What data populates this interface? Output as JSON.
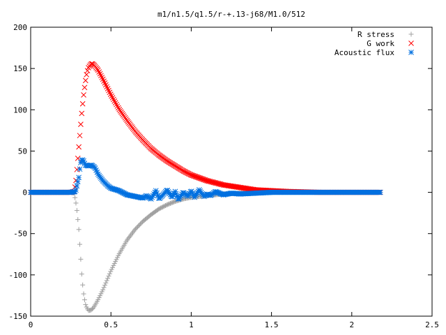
{
  "chart_data": {
    "type": "scatter",
    "title": "m1/n1.5/q1.5/r-+.13-j68/M1.0/512",
    "xlabel": "",
    "ylabel": "",
    "xlim": [
      0,
      2.5
    ],
    "ylim": [
      -150,
      200
    ],
    "xticks": [
      0,
      0.5,
      1,
      1.5,
      2,
      2.5
    ],
    "xtick_labels": [
      "0",
      "0.5",
      "1",
      "1.5",
      "2",
      "2.5"
    ],
    "yticks": [
      -150,
      -100,
      -50,
      0,
      50,
      100,
      150,
      200
    ],
    "ytick_labels": [
      "-150",
      "-100",
      "-50",
      "0",
      "50",
      "100",
      "150",
      "200"
    ],
    "grid": false,
    "legend_position": "top-right",
    "series": [
      {
        "name": "R stress",
        "marker": "plus",
        "color": "#a0a0a0",
        "x": [
          0,
          0.05,
          0.1,
          0.15,
          0.2,
          0.25,
          0.27,
          0.28,
          0.29,
          0.3,
          0.31,
          0.32,
          0.33,
          0.34,
          0.35,
          0.36,
          0.37,
          0.38,
          0.39,
          0.4,
          0.42,
          0.45,
          0.5,
          0.55,
          0.6,
          0.65,
          0.7,
          0.75,
          0.8,
          0.85,
          0.9,
          0.95,
          1,
          1.1,
          1.2,
          1.3,
          1.4,
          1.5,
          1.6,
          1.8,
          2,
          2.18
        ],
        "y": [
          0,
          0,
          0,
          0,
          0,
          0,
          -1,
          -10,
          -25,
          -45,
          -75,
          -105,
          -123,
          -135,
          -140,
          -143,
          -143,
          -142,
          -140,
          -137,
          -130,
          -118,
          -95,
          -75,
          -58,
          -45,
          -35,
          -27,
          -20,
          -15,
          -11,
          -8,
          -6,
          -4,
          -2,
          -1,
          0,
          0,
          0,
          0,
          0,
          0
        ]
      },
      {
        "name": "G work",
        "marker": "cross",
        "color": "#ff0000",
        "x": [
          0,
          0.05,
          0.1,
          0.15,
          0.2,
          0.25,
          0.27,
          0.28,
          0.29,
          0.3,
          0.31,
          0.32,
          0.33,
          0.34,
          0.35,
          0.36,
          0.37,
          0.38,
          0.39,
          0.4,
          0.42,
          0.45,
          0.5,
          0.55,
          0.6,
          0.65,
          0.7,
          0.75,
          0.8,
          0.85,
          0.9,
          0.95,
          1,
          1.1,
          1.2,
          1.3,
          1.4,
          1.5,
          1.6,
          1.8,
          2,
          2.18
        ],
        "y": [
          0,
          0,
          0,
          0,
          0,
          0,
          1,
          10,
          32,
          55,
          78,
          100,
          118,
          133,
          145,
          151,
          154,
          156,
          155,
          153,
          148,
          137,
          118,
          101,
          87,
          74,
          63,
          53,
          45,
          38,
          32,
          26,
          21,
          14,
          9,
          6,
          3,
          2,
          1,
          0,
          0,
          0
        ]
      },
      {
        "name": "Acoustic flux",
        "marker": "star",
        "color": "#0070e0",
        "x": [
          0,
          0.05,
          0.1,
          0.15,
          0.2,
          0.25,
          0.28,
          0.3,
          0.31,
          0.32,
          0.33,
          0.34,
          0.36,
          0.38,
          0.4,
          0.42,
          0.45,
          0.48,
          0.5,
          0.55,
          0.6,
          0.65,
          0.7,
          0.72,
          0.75,
          0.78,
          0.8,
          0.82,
          0.85,
          0.88,
          0.9,
          0.92,
          0.95,
          0.98,
          1,
          1.02,
          1.05,
          1.08,
          1.1,
          1.12,
          1.15,
          1.2,
          1.25,
          1.3,
          1.4,
          1.5,
          1.6,
          1.8,
          2,
          2.18
        ],
        "y": [
          0,
          0,
          0,
          0,
          0,
          0,
          1,
          18,
          35,
          40,
          38,
          33,
          32,
          33,
          30,
          22,
          14,
          8,
          5,
          2,
          -3,
          -5,
          -7,
          -4,
          -8,
          2,
          -8,
          -4,
          3,
          -6,
          1,
          -9,
          0,
          -5,
          2,
          -6,
          3,
          -5,
          -2,
          -4,
          1,
          -3,
          -1,
          -2,
          -1,
          0,
          0,
          0,
          0,
          0
        ]
      }
    ]
  }
}
